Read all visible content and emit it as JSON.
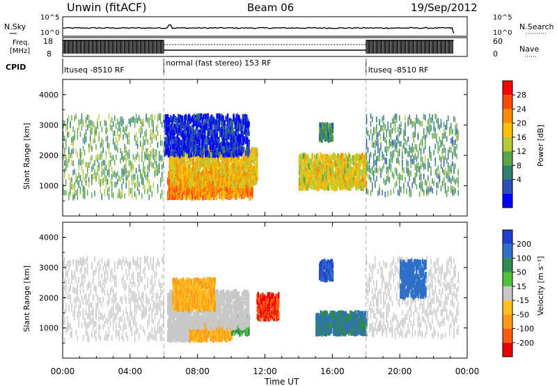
{
  "header": {
    "site": "Unwin (fitACF)",
    "beam": "Beam 06",
    "date": "19/Sep/2012"
  },
  "noise_panel": {
    "left_label": "N.Sky",
    "right_label": "N.Search",
    "left_ticks": [
      "10^5",
      "10^0"
    ],
    "right_ticks": [
      "10^5",
      "10^0"
    ]
  },
  "freq_panel": {
    "left_label_line1": "Freq.",
    "left_label_line2": "[MHz]",
    "right_label": "Nave",
    "left_ticks": [
      "18",
      "8"
    ],
    "right_ticks": [
      "60",
      "0"
    ]
  },
  "cpid": {
    "label": "CPID",
    "segments": [
      {
        "start_hour": 0,
        "end_hour": 6,
        "name": "ltuseq -8510 RF"
      },
      {
        "start_hour": 6,
        "end_hour": 18,
        "name": "normal (fast stereo) 153 RF"
      },
      {
        "start_hour": 18,
        "end_hour": 24,
        "name": "ltuseq -8510 RF"
      }
    ]
  },
  "power_panel": {
    "ylabel": "Slant Range [km]",
    "yticks": [
      "4000",
      "3000",
      "2000",
      "1000"
    ],
    "colorbar_label": "Power [dB]",
    "colorbar_ticks": [
      "28",
      "24",
      "20",
      "16",
      "12",
      "8",
      "4"
    ],
    "colors": [
      "#0000ff",
      "#2b4fb4",
      "#2f7f6f",
      "#5aa54a",
      "#b8c838",
      "#ffc000",
      "#ff8c00",
      "#ff4a00",
      "#ff0000"
    ]
  },
  "velocity_panel": {
    "ylabel": "Slant Range [km]",
    "yticks": [
      "4000",
      "3000",
      "2000",
      "1000"
    ],
    "colorbar_label": "Velocity [m s⁻¹]",
    "colorbar_ticks": [
      "200",
      "100",
      "50",
      "15",
      "-15",
      "-50",
      "-100",
      "-200"
    ],
    "colors": [
      "#1e3fd0",
      "#2e6fc8",
      "#2e8a4f",
      "#4fc13a",
      "#c8c8c8",
      "#ffc020",
      "#ff9a1a",
      "#ff5a10",
      "#e80000"
    ]
  },
  "xaxis": {
    "label": "Time UT",
    "ticks": [
      "00:00",
      "04:00",
      "08:00",
      "12:00",
      "16:00",
      "20:00",
      "00:00"
    ]
  },
  "chart_data": {
    "type": "heatmap",
    "title": "Unwin (fitACF) Beam 06 19/Sep/2012",
    "xlabel": "Time UT",
    "ylabel": "Slant Range [km]",
    "xlim_hours": [
      0,
      24
    ],
    "ylim_km": [
      0,
      4500
    ],
    "scatter_regions_power": [
      {
        "start_hour": 0.0,
        "end_hour": 6.0,
        "range_km": [
          600,
          3300
        ],
        "power_db": 14
      },
      {
        "start_hour": 6.2,
        "end_hour": 11.2,
        "range_km": [
          600,
          1400
        ],
        "power_db": 26
      },
      {
        "start_hour": 6.3,
        "end_hour": 11.5,
        "range_km": [
          1000,
          2200
        ],
        "power_db": 22
      },
      {
        "start_hour": 6.0,
        "end_hour": 11.0,
        "range_km": [
          2000,
          3300
        ],
        "power_db": 4
      },
      {
        "start_hour": 14.0,
        "end_hour": 18.0,
        "range_km": [
          900,
          2000
        ],
        "power_db": 20
      },
      {
        "start_hour": 15.2,
        "end_hour": 16.0,
        "range_km": [
          2500,
          3000
        ],
        "power_db": 12
      },
      {
        "start_hour": 18.0,
        "end_hour": 23.5,
        "range_km": [
          700,
          3300
        ],
        "power_db": 12
      }
    ],
    "scatter_regions_velocity": [
      {
        "start_hour": 0.0,
        "end_hour": 6.0,
        "range_km": [
          600,
          3300
        ],
        "velocity_ms": 0
      },
      {
        "start_hour": 6.2,
        "end_hour": 7.5,
        "range_km": [
          600,
          1200
        ],
        "velocity_ms": 0
      },
      {
        "start_hour": 7.5,
        "end_hour": 10.0,
        "range_km": [
          600,
          1200
        ],
        "velocity_ms": -50
      },
      {
        "start_hour": 10.0,
        "end_hour": 11.0,
        "range_km": [
          800,
          1400
        ],
        "velocity_ms": 50
      },
      {
        "start_hour": 6.2,
        "end_hour": 11.0,
        "range_km": [
          1000,
          2200
        ],
        "velocity_ms": 0
      },
      {
        "start_hour": 6.5,
        "end_hour": 9.0,
        "range_km": [
          1600,
          2600
        ],
        "velocity_ms": -50
      },
      {
        "start_hour": 11.5,
        "end_hour": 12.8,
        "range_km": [
          1300,
          2100
        ],
        "velocity_ms": -200
      },
      {
        "start_hour": 15.0,
        "end_hour": 18.0,
        "range_km": [
          800,
          1500
        ],
        "velocity_ms": 100
      },
      {
        "start_hour": 15.2,
        "end_hour": 16.0,
        "range_km": [
          2600,
          3200
        ],
        "velocity_ms": 200
      },
      {
        "start_hour": 18.0,
        "end_hour": 23.5,
        "range_km": [
          700,
          3300
        ],
        "velocity_ms": 0
      },
      {
        "start_hour": 20.0,
        "end_hour": 21.5,
        "range_km": [
          2000,
          3200
        ],
        "velocity_ms": 150
      }
    ]
  }
}
